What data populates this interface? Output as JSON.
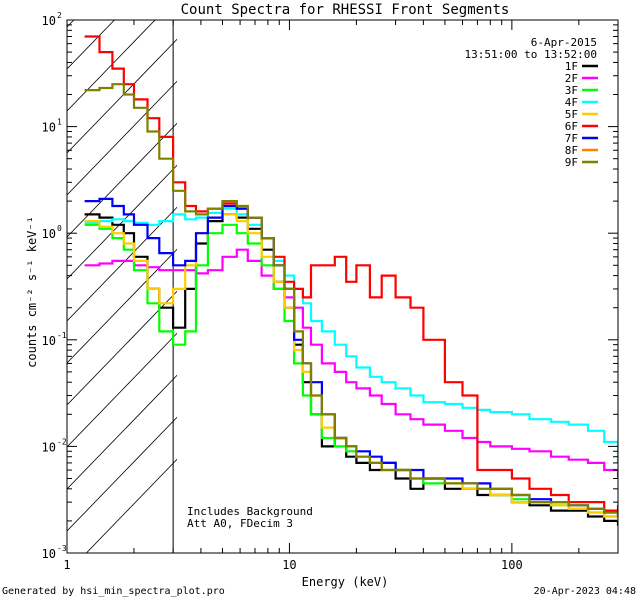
{
  "chart_data": {
    "type": "line",
    "title": "Count Spectra for RHESSI Front Segments",
    "xlabel": "Energy (keV)",
    "ylabel": "counts cm⁻² s⁻¹ keV⁻¹",
    "xscale": "log",
    "yscale": "log",
    "xlim": [
      1,
      300
    ],
    "ylim": [
      0.001,
      100
    ],
    "x_ticks": [
      {
        "value": 1,
        "label": "1"
      },
      {
        "value": 10,
        "label": "10"
      },
      {
        "value": 100,
        "label": "100"
      }
    ],
    "y_ticks": [
      {
        "value": 100,
        "mant": "10",
        "exp": "2"
      },
      {
        "value": 10,
        "mant": "10",
        "exp": "1"
      },
      {
        "value": 1,
        "mant": "10",
        "exp": "0"
      },
      {
        "value": 0.1,
        "mant": "10",
        "exp": "-1"
      },
      {
        "value": 0.01,
        "mant": "10",
        "exp": "-2"
      },
      {
        "value": 0.001,
        "mant": "10",
        "exp": "-3"
      }
    ],
    "date": "6-Apr-2015",
    "time_range": "13:51:00 to 13:52:00",
    "shaded_below_energy": 3,
    "annotations": [
      "Includes Background",
      "Att A0, FDecim 3"
    ],
    "series": [
      {
        "name": "1F",
        "color": "#000000",
        "x": [
          1.2,
          1.4,
          1.6,
          1.8,
          2.0,
          2.3,
          2.6,
          3.0,
          3.4,
          3.8,
          4.3,
          5.0,
          5.8,
          6.5,
          7.5,
          8.5,
          9.5,
          10.5,
          11.5,
          12.5,
          14,
          16,
          18,
          20,
          23,
          26,
          30,
          35,
          40,
          50,
          60,
          70,
          80,
          100,
          120,
          150,
          180,
          220,
          260,
          300
        ],
        "y": [
          1.5,
          1.4,
          1.2,
          1.0,
          0.6,
          0.3,
          0.2,
          0.13,
          0.3,
          0.8,
          1.3,
          1.5,
          1.4,
          1.1,
          0.7,
          0.35,
          0.2,
          0.09,
          0.04,
          0.02,
          0.01,
          0.012,
          0.008,
          0.007,
          0.006,
          0.007,
          0.005,
          0.004,
          0.005,
          0.004,
          0.004,
          0.0035,
          0.0035,
          0.003,
          0.0028,
          0.0025,
          0.0025,
          0.0022,
          0.002,
          0.0018
        ]
      },
      {
        "name": "2F",
        "color": "#ff00ff",
        "x": [
          1.2,
          1.4,
          1.6,
          1.8,
          2.0,
          2.3,
          2.6,
          3.0,
          3.4,
          3.8,
          4.3,
          5.0,
          5.8,
          6.5,
          7.5,
          8.5,
          9.5,
          10.5,
          11.5,
          12.5,
          14,
          16,
          18,
          20,
          23,
          26,
          30,
          35,
          40,
          50,
          60,
          70,
          80,
          100,
          120,
          150,
          180,
          220,
          260,
          300
        ],
        "y": [
          0.5,
          0.52,
          0.55,
          0.55,
          0.5,
          0.48,
          0.45,
          0.45,
          0.45,
          0.42,
          0.45,
          0.6,
          0.7,
          0.55,
          0.4,
          0.3,
          0.25,
          0.2,
          0.13,
          0.09,
          0.06,
          0.05,
          0.04,
          0.035,
          0.03,
          0.025,
          0.02,
          0.018,
          0.016,
          0.014,
          0.012,
          0.011,
          0.01,
          0.0095,
          0.009,
          0.008,
          0.0075,
          0.007,
          0.006,
          0.005
        ]
      },
      {
        "name": "3F",
        "color": "#00ff00",
        "x": [
          1.2,
          1.4,
          1.6,
          1.8,
          2.0,
          2.3,
          2.6,
          3.0,
          3.4,
          3.8,
          4.3,
          5.0,
          5.8,
          6.5,
          7.5,
          8.5,
          9.5,
          10.5,
          11.5,
          12.5,
          14,
          16,
          18,
          20,
          23,
          26,
          30,
          35,
          40,
          50,
          60,
          70,
          80,
          100,
          120,
          150,
          180,
          220,
          260,
          300
        ],
        "y": [
          1.2,
          1.1,
          0.9,
          0.7,
          0.45,
          0.22,
          0.12,
          0.09,
          0.12,
          0.5,
          1.0,
          1.2,
          1.0,
          0.8,
          0.5,
          0.3,
          0.15,
          0.06,
          0.03,
          0.02,
          0.012,
          0.01,
          0.009,
          0.008,
          0.007,
          0.006,
          0.006,
          0.005,
          0.0045,
          0.0045,
          0.004,
          0.004,
          0.0035,
          0.0032,
          0.003,
          0.0028,
          0.0026,
          0.0024,
          0.0022,
          0.002
        ]
      },
      {
        "name": "4F",
        "color": "#00ffff",
        "x": [
          1.2,
          1.4,
          1.6,
          1.8,
          2.0,
          2.3,
          2.6,
          3.0,
          3.4,
          3.8,
          4.3,
          5.0,
          5.8,
          6.5,
          7.5,
          8.5,
          9.5,
          10.5,
          11.5,
          12.5,
          14,
          16,
          18,
          20,
          23,
          26,
          30,
          35,
          40,
          50,
          60,
          70,
          80,
          100,
          120,
          150,
          180,
          220,
          260,
          300
        ],
        "y": [
          1.25,
          1.3,
          1.35,
          1.3,
          1.25,
          1.2,
          1.3,
          1.5,
          1.35,
          1.4,
          1.55,
          1.7,
          1.5,
          1.2,
          0.9,
          0.55,
          0.4,
          0.3,
          0.22,
          0.15,
          0.12,
          0.09,
          0.07,
          0.055,
          0.045,
          0.04,
          0.035,
          0.03,
          0.026,
          0.025,
          0.023,
          0.022,
          0.021,
          0.02,
          0.018,
          0.017,
          0.016,
          0.014,
          0.011,
          0.007
        ]
      },
      {
        "name": "5F",
        "color": "#ffcc00",
        "x": [
          1.2,
          1.4,
          1.6,
          1.8,
          2.0,
          2.3,
          2.6,
          3.0,
          3.4,
          3.8,
          4.3,
          5.0,
          5.8,
          6.5,
          7.5,
          8.5,
          9.5,
          10.5,
          11.5,
          12.5,
          14,
          16,
          18,
          20,
          23,
          26,
          30,
          35,
          40,
          50,
          60,
          70,
          80,
          100,
          120,
          150,
          180,
          220,
          260,
          300
        ],
        "y": [
          1.3,
          1.15,
          1.0,
          0.8,
          0.55,
          0.3,
          0.22,
          0.3,
          0.5,
          1.0,
          1.4,
          1.5,
          1.3,
          1.0,
          0.6,
          0.35,
          0.2,
          0.08,
          0.05,
          0.03,
          0.015,
          0.012,
          0.01,
          0.008,
          0.007,
          0.006,
          0.006,
          0.005,
          0.005,
          0.0045,
          0.004,
          0.004,
          0.0035,
          0.003,
          0.003,
          0.0028,
          0.0026,
          0.0024,
          0.0022,
          0.002
        ]
      },
      {
        "name": "6F",
        "color": "#ff0000",
        "x": [
          1.2,
          1.4,
          1.6,
          1.8,
          2.0,
          2.3,
          2.6,
          3.0,
          3.4,
          3.8,
          4.3,
          5.0,
          5.8,
          6.5,
          7.5,
          8.5,
          9.5,
          10.5,
          11.5,
          12.5,
          14,
          16,
          18,
          20,
          23,
          26,
          30,
          35,
          40,
          50,
          60,
          70,
          80,
          100,
          120,
          150,
          180,
          220,
          260,
          300
        ],
        "y": [
          70,
          50,
          35,
          25,
          18,
          12,
          8,
          3,
          1.8,
          1.6,
          1.7,
          1.9,
          1.7,
          1.4,
          0.9,
          0.6,
          0.35,
          0.3,
          0.25,
          0.5,
          0.5,
          0.6,
          0.35,
          0.5,
          0.25,
          0.4,
          0.25,
          0.2,
          0.1,
          0.04,
          0.03,
          0.006,
          0.006,
          0.005,
          0.004,
          0.0035,
          0.003,
          0.003,
          0.0025,
          0.0028
        ]
      },
      {
        "name": "7F",
        "color": "#0000ff",
        "x": [
          1.2,
          1.4,
          1.6,
          1.8,
          2.0,
          2.3,
          2.6,
          3.0,
          3.4,
          3.8,
          4.3,
          5.0,
          5.8,
          6.5,
          7.5,
          8.5,
          9.5,
          10.5,
          11.5,
          12.5,
          14,
          16,
          18,
          20,
          23,
          26,
          30,
          35,
          40,
          50,
          60,
          70,
          80,
          100,
          120,
          150,
          180,
          220,
          260,
          300
        ],
        "y": [
          2.0,
          2.1,
          1.8,
          1.5,
          1.2,
          0.9,
          0.65,
          0.5,
          0.55,
          1.0,
          1.4,
          1.8,
          1.7,
          1.4,
          0.9,
          0.5,
          0.3,
          0.1,
          0.06,
          0.04,
          0.02,
          0.012,
          0.01,
          0.009,
          0.008,
          0.007,
          0.006,
          0.006,
          0.005,
          0.005,
          0.0045,
          0.0045,
          0.004,
          0.0035,
          0.0032,
          0.003,
          0.0028,
          0.0026,
          0.0024,
          0.0022
        ]
      },
      {
        "name": "8F",
        "color": "#ff8000",
        "x": [],
        "y": []
      },
      {
        "name": "9F",
        "color": "#808000",
        "x": [
          1.2,
          1.4,
          1.6,
          1.8,
          2.0,
          2.3,
          2.6,
          3.0,
          3.4,
          3.8,
          4.3,
          5.0,
          5.8,
          6.5,
          7.5,
          8.5,
          9.5,
          10.5,
          11.5,
          12.5,
          14,
          16,
          18,
          20,
          23,
          26,
          30,
          35,
          40,
          50,
          60,
          70,
          80,
          100,
          120,
          150,
          180,
          220,
          260,
          300
        ],
        "y": [
          22,
          23,
          25,
          20,
          15,
          9,
          5,
          2.5,
          1.6,
          1.5,
          1.7,
          2.0,
          1.8,
          1.4,
          0.9,
          0.5,
          0.3,
          0.12,
          0.06,
          0.03,
          0.02,
          0.012,
          0.01,
          0.008,
          0.007,
          0.006,
          0.006,
          0.005,
          0.005,
          0.0045,
          0.0045,
          0.004,
          0.004,
          0.0035,
          0.003,
          0.003,
          0.0028,
          0.0026,
          0.0024,
          0.0022
        ]
      }
    ]
  },
  "footer": {
    "left": "Generated by hsi_min_spectra_plot.pro",
    "right": "20-Apr-2023 04:48"
  }
}
